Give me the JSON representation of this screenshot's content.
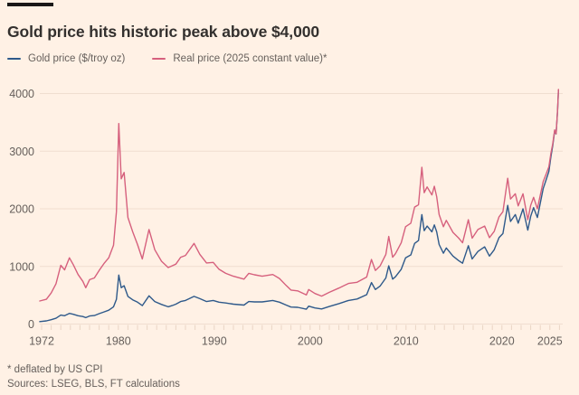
{
  "header": {
    "title": "Gold price hits historic peak above $4,000"
  },
  "footer": {
    "note": "* deflated by US CPI",
    "sources": "Sources: LSEG, BLS, FT calculations"
  },
  "chart_data": {
    "type": "line",
    "title": "Gold price hits historic peak above $4,000",
    "xlabel": "",
    "ylabel": "",
    "ylim": [
      0,
      4100
    ],
    "yticks": [
      0,
      1000,
      2000,
      3000,
      4000
    ],
    "xticks": [
      1972,
      1980,
      1990,
      2000,
      2010,
      2020,
      2025
    ],
    "xrange": [
      1972,
      2026
    ],
    "grid": "horizontal",
    "legend_position": "top-left",
    "background_color": "#fff1e5",
    "gridline_color": "#f0ded0",
    "tick_color": "#e9d5c5",
    "text_color": "#66605c",
    "x": [
      1971.8,
      1972.5,
      1973,
      1973.5,
      1974,
      1974.4,
      1974.9,
      1975.3,
      1975.8,
      1976.3,
      1976.6,
      1977,
      1977.5,
      1978,
      1978.5,
      1979,
      1979.5,
      1979.8,
      1980.05,
      1980.3,
      1980.6,
      1981,
      1981.5,
      1982,
      1982.5,
      1983.2,
      1983.8,
      1984.5,
      1985.2,
      1985.6,
      1986,
      1986.5,
      1987,
      1987.9,
      1988.5,
      1989.2,
      1989.9,
      1990.5,
      1991.2,
      1992,
      1993.1,
      1993.6,
      1994.2,
      1995,
      1996.1,
      1996.8,
      1997.5,
      1998,
      1998.7,
      1999.6,
      1999.85,
      2000.5,
      2001.2,
      2002,
      2003,
      2004,
      2004.9,
      2005.9,
      2006.4,
      2006.8,
      2007.3,
      2007.9,
      2008.2,
      2008.6,
      2008.9,
      2009.5,
      2009.95,
      2010.5,
      2010.9,
      2011.3,
      2011.65,
      2011.9,
      2012.2,
      2012.7,
      2012.95,
      2013.2,
      2013.45,
      2013.9,
      2014.2,
      2014.9,
      2015.5,
      2015.9,
      2016.5,
      2016.9,
      2017.5,
      2018.2,
      2018.7,
      2019.2,
      2019.7,
      2020.1,
      2020.6,
      2020.9,
      2021.4,
      2021.7,
      2022.2,
      2022.7,
      2023,
      2023.3,
      2023.7,
      2023.95,
      2024.3,
      2024.6,
      2024.9,
      2025.1,
      2025.3,
      2025.5,
      2025.65,
      2025.8,
      2025.9
    ],
    "series": [
      {
        "name": "Gold price ($/troy oz)",
        "color": "#2e598a",
        "values": [
          42,
          55,
          75,
          100,
          155,
          145,
          185,
          170,
          145,
          130,
          112,
          140,
          148,
          180,
          210,
          240,
          300,
          430,
          850,
          630,
          665,
          480,
          420,
          380,
          320,
          490,
          390,
          340,
          300,
          320,
          345,
          390,
          410,
          480,
          440,
          390,
          410,
          380,
          365,
          345,
          330,
          390,
          385,
          385,
          410,
          380,
          330,
          295,
          290,
          258,
          310,
          280,
          262,
          305,
          355,
          410,
          435,
          510,
          720,
          600,
          660,
          800,
          1010,
          780,
          820,
          950,
          1150,
          1200,
          1400,
          1450,
          1900,
          1620,
          1700,
          1600,
          1720,
          1600,
          1380,
          1230,
          1320,
          1180,
          1100,
          1055,
          1360,
          1130,
          1260,
          1340,
          1180,
          1290,
          1500,
          1570,
          2060,
          1780,
          1900,
          1750,
          2000,
          1630,
          1870,
          2020,
          1850,
          2060,
          2350,
          2500,
          2650,
          2900,
          3100,
          3350,
          3300,
          3700,
          4060
        ]
      },
      {
        "name": "Real price (2025 constant value)*",
        "color": "#d6607d",
        "values": [
          400,
          430,
          540,
          700,
          1020,
          940,
          1150,
          1030,
          860,
          740,
          630,
          770,
          800,
          930,
          1050,
          1150,
          1370,
          1950,
          3480,
          2520,
          2630,
          1850,
          1600,
          1380,
          1130,
          1640,
          1290,
          1090,
          980,
          1010,
          1040,
          1160,
          1190,
          1400,
          1210,
          1060,
          1070,
          950,
          880,
          830,
          780,
          880,
          855,
          830,
          860,
          790,
          670,
          590,
          575,
          505,
          600,
          530,
          485,
          550,
          625,
          705,
          725,
          815,
          1120,
          930,
          1010,
          1210,
          1520,
          1160,
          1220,
          1410,
          1690,
          1750,
          2030,
          2070,
          2720,
          2280,
          2380,
          2240,
          2390,
          2210,
          1900,
          1690,
          1800,
          1590,
          1490,
          1410,
          1810,
          1490,
          1640,
          1700,
          1500,
          1610,
          1860,
          1950,
          2530,
          2170,
          2260,
          2050,
          2260,
          1810,
          2060,
          2200,
          2000,
          2200,
          2470,
          2600,
          2730,
          2960,
          3130,
          3370,
          3300,
          3710,
          4070
        ]
      }
    ],
    "footnotes": [
      "* deflated by US CPI",
      "Sources: LSEG, BLS, FT calculations"
    ]
  }
}
